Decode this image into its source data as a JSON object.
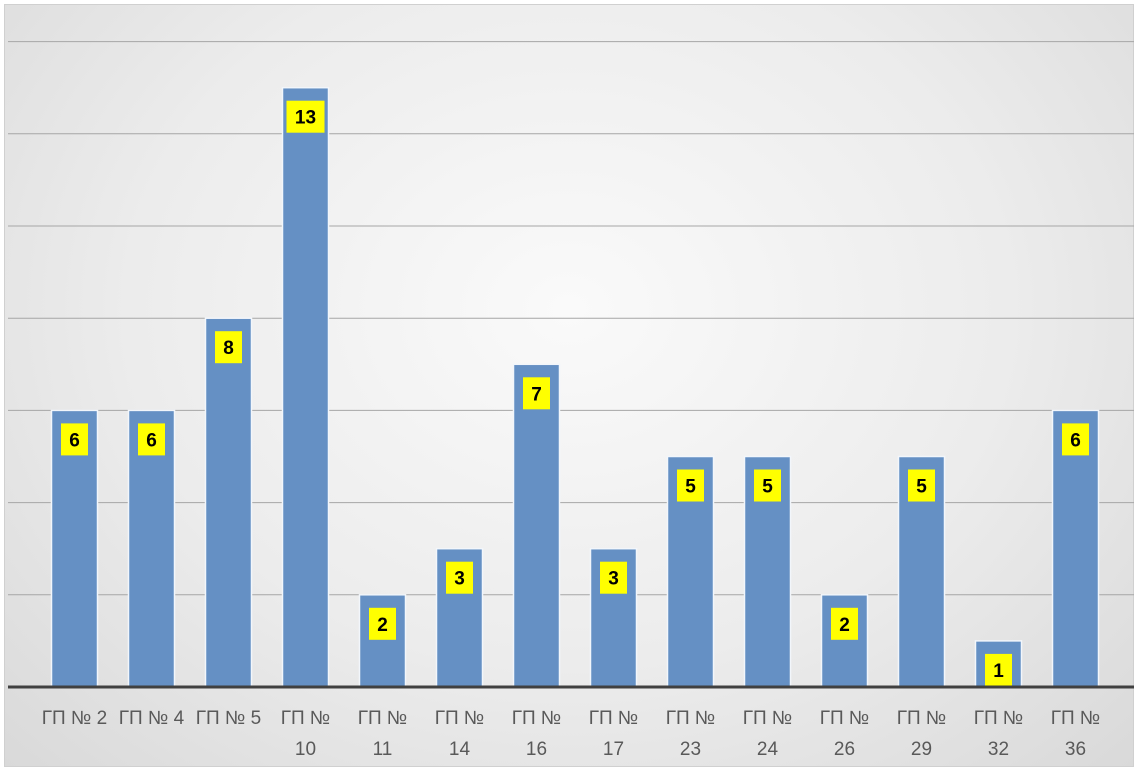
{
  "chart_data": {
    "type": "bar",
    "title": "",
    "xlabel": "",
    "ylabel": "",
    "categories": [
      [
        "ГП № 2"
      ],
      [
        "ГП № 4"
      ],
      [
        "ГП № 5"
      ],
      [
        "ГП №",
        "10"
      ],
      [
        "ГП №",
        "11"
      ],
      [
        "ГП №",
        "14"
      ],
      [
        "ГП №",
        "16"
      ],
      [
        "ГП №",
        "17"
      ],
      [
        "ГП №",
        "23"
      ],
      [
        "ГП №",
        "24"
      ],
      [
        "ГП №",
        "26"
      ],
      [
        "ГП №",
        "29"
      ],
      [
        "ГП №",
        "32"
      ],
      [
        "ГП №",
        "36"
      ]
    ],
    "values": [
      6,
      6,
      8,
      13,
      2,
      3,
      7,
      3,
      5,
      5,
      2,
      5,
      1,
      6
    ],
    "ylim": [
      0,
      14
    ],
    "grid": true,
    "legend": "none",
    "colors": {
      "bar_fill": "#6590c4",
      "bar_edge": "#f2f6fb",
      "label_bg": "#ffff00",
      "label_text": "#000000",
      "gridline": "#a6a6a6",
      "axis": "#404040",
      "tick_text": "#595959"
    }
  }
}
